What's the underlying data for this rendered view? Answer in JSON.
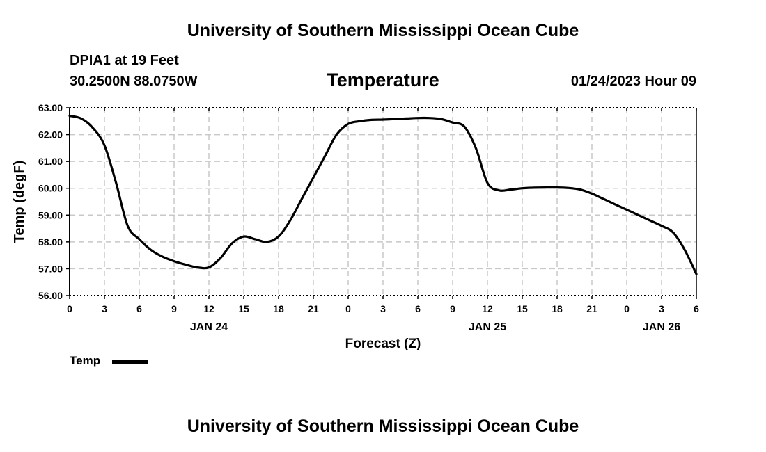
{
  "header": {
    "top_title": "University of Southern Mississippi Ocean Cube",
    "station": "DPIA1 at 19 Feet",
    "coords": "30.2500N  88.0750W",
    "parameter": "Temperature",
    "datetime": "01/24/2023 Hour 09"
  },
  "footer": {
    "bottom_title": "University of Southern Mississippi Ocean Cube"
  },
  "legend": {
    "label": "Temp"
  },
  "chart_data": {
    "type": "line",
    "title": "Temperature",
    "xlabel": "Forecast (Z)",
    "ylabel": "Temp (degF)",
    "ylim": [
      56,
      63
    ],
    "y_ticks": [
      "56.00",
      "57.00",
      "58.00",
      "59.00",
      "60.00",
      "61.00",
      "62.00",
      "63.00"
    ],
    "xlim_hours": [
      0,
      54
    ],
    "x_ticks": [
      "0",
      "3",
      "6",
      "9",
      "12",
      "15",
      "18",
      "21",
      "0",
      "3",
      "6",
      "9",
      "12",
      "15",
      "18",
      "21",
      "0",
      "3",
      "6"
    ],
    "day_labels": [
      {
        "label": "JAN 24",
        "hour": 12
      },
      {
        "label": "JAN 25",
        "hour": 36
      },
      {
        "label": "JAN 26",
        "hour": 51
      }
    ],
    "grid": true,
    "color": "#000000",
    "series": [
      {
        "name": "Temp",
        "x": [
          0,
          1,
          2,
          3,
          4,
          5,
          6,
          7,
          8,
          9,
          10,
          11,
          12,
          13,
          14,
          15,
          16,
          17,
          18,
          19,
          20,
          21,
          22,
          23,
          24,
          25,
          26,
          27,
          28,
          29,
          30,
          31,
          32,
          33,
          34,
          35,
          36,
          37,
          38,
          39,
          40,
          41,
          42,
          43,
          44,
          45,
          46,
          47,
          48,
          49,
          50,
          51,
          52,
          53,
          54
        ],
        "values": [
          62.7,
          62.6,
          62.25,
          61.6,
          60.2,
          58.6,
          58.1,
          57.7,
          57.45,
          57.28,
          57.15,
          57.05,
          57.05,
          57.4,
          57.95,
          58.2,
          58.1,
          58.0,
          58.2,
          58.8,
          59.6,
          60.4,
          61.2,
          62.0,
          62.4,
          62.5,
          62.55,
          62.56,
          62.58,
          62.6,
          62.62,
          62.62,
          62.58,
          62.45,
          62.3,
          61.5,
          60.2,
          59.92,
          59.95,
          60.0,
          60.02,
          60.03,
          60.03,
          60.01,
          59.95,
          59.8,
          59.6,
          59.4,
          59.2,
          59.0,
          58.8,
          58.6,
          58.35,
          57.7,
          56.8
        ]
      }
    ]
  }
}
